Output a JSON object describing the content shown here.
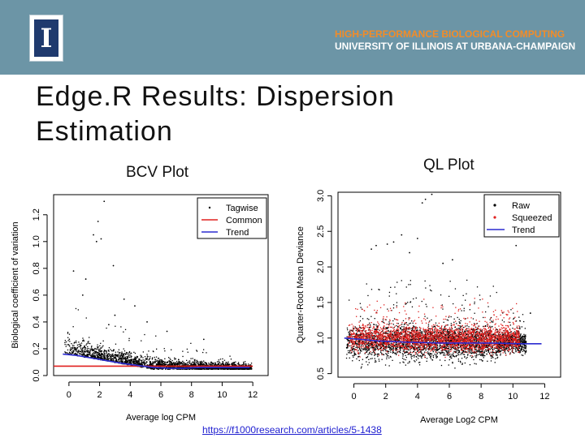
{
  "header": {
    "logo_letter": "I",
    "org_line1": "HIGH-PERFORMANCE BIOLOGICAL COMPUTING",
    "org_line2": "UNIVERSITY OF ILLINOIS AT URBANA-CHAMPAIGN",
    "brand_color": "#f28c28"
  },
  "slide": {
    "title_line1": "Edge.R Results: Dispersion",
    "title_line2": "Estimation",
    "bcv_label": "BCV Plot",
    "ql_label": "QL Plot",
    "link_text": "https://f1000research.com/articles/5-1438"
  },
  "chart_data": [
    {
      "type": "scatter",
      "title": "BCV Plot",
      "xlabel": "Average log CPM",
      "ylabel": "Biological coefficient of variation",
      "xlim": [
        -1,
        13
      ],
      "ylim": [
        0,
        1.35
      ],
      "xticks": [
        0,
        2,
        4,
        6,
        8,
        10,
        12
      ],
      "yticks": [
        0.0,
        0.2,
        0.4,
        0.6,
        0.8,
        1.0,
        1.2
      ],
      "legend": [
        {
          "label": "Tagwise",
          "color": "#000000",
          "kind": "point"
        },
        {
          "label": "Common",
          "color": "#e0201f",
          "kind": "line"
        },
        {
          "label": "Trend",
          "color": "#2b2bd0",
          "kind": "line"
        }
      ],
      "series": [
        {
          "name": "Common",
          "x": [
            -1,
            12
          ],
          "y": [
            0.07,
            0.07
          ]
        },
        {
          "name": "Trend",
          "x": [
            -0.4,
            0.5,
            1.5,
            2.5,
            3.5,
            4.5,
            5.5,
            6.5,
            7.5,
            8.5,
            9.5,
            10.5,
            11.8
          ],
          "y": [
            0.16,
            0.15,
            0.13,
            0.11,
            0.09,
            0.075,
            0.06,
            0.055,
            0.055,
            0.06,
            0.06,
            0.06,
            0.06
          ]
        }
      ],
      "tagwise_points": [
        {
          "x": 1.9,
          "y": 1.15
        },
        {
          "x": 2.3,
          "y": 1.3
        },
        {
          "x": 1.6,
          "y": 1.05
        },
        {
          "x": 1.8,
          "y": 1.0
        },
        {
          "x": 2.1,
          "y": 1.02
        },
        {
          "x": 3.6,
          "y": 0.57
        },
        {
          "x": 4.3,
          "y": 0.52
        },
        {
          "x": 3.0,
          "y": 0.45
        },
        {
          "x": 2.6,
          "y": 0.38
        },
        {
          "x": 1.1,
          "y": 0.72
        },
        {
          "x": 0.9,
          "y": 0.6
        },
        {
          "x": 5.1,
          "y": 0.4
        },
        {
          "x": 6.4,
          "y": 0.33
        },
        {
          "x": 8.8,
          "y": 0.27
        },
        {
          "x": 0.3,
          "y": 0.78
        },
        {
          "x": 2.9,
          "y": 0.82
        }
      ]
    },
    {
      "type": "scatter",
      "title": "QL Plot",
      "xlabel": "Average Log2 CPM",
      "ylabel": "Quarter-Root Mean Deviance",
      "xlim": [
        -1,
        13
      ],
      "ylim": [
        0.45,
        3.05
      ],
      "xticks": [
        0,
        2,
        4,
        6,
        8,
        10,
        12
      ],
      "yticks": [
        0.5,
        1.0,
        1.5,
        2.0,
        2.5,
        3.0
      ],
      "legend": [
        {
          "label": "Raw",
          "color": "#000000",
          "kind": "point"
        },
        {
          "label": "Squeezed",
          "color": "#e0201f",
          "kind": "point"
        },
        {
          "label": "Trend",
          "color": "#2b2bd0",
          "kind": "line"
        }
      ],
      "series": [
        {
          "name": "Trend",
          "x": [
            -0.6,
            0.5,
            1.5,
            2.5,
            3.5,
            4.5,
            5.5,
            6.5,
            7.5,
            8.5,
            9.5,
            10.5,
            11.8
          ],
          "y": [
            1.0,
            0.98,
            0.96,
            0.95,
            0.94,
            0.935,
            0.93,
            0.93,
            0.93,
            0.93,
            0.925,
            0.92,
            0.92
          ]
        }
      ],
      "raw_points": [
        {
          "x": 4.9,
          "y": 3.02
        },
        {
          "x": 4.3,
          "y": 2.9
        },
        {
          "x": 4.5,
          "y": 2.95
        },
        {
          "x": 5.6,
          "y": 2.05
        },
        {
          "x": 10.2,
          "y": 2.3
        },
        {
          "x": 2.5,
          "y": 2.35
        },
        {
          "x": 1.4,
          "y": 2.3
        },
        {
          "x": 3.0,
          "y": 2.45
        },
        {
          "x": 4.0,
          "y": 2.4
        },
        {
          "x": 2.1,
          "y": 2.32
        },
        {
          "x": 11.1,
          "y": 1.35
        },
        {
          "x": 1.1,
          "y": 2.25
        },
        {
          "x": 3.5,
          "y": 2.2
        },
        {
          "x": 6.2,
          "y": 2.1
        }
      ]
    }
  ]
}
